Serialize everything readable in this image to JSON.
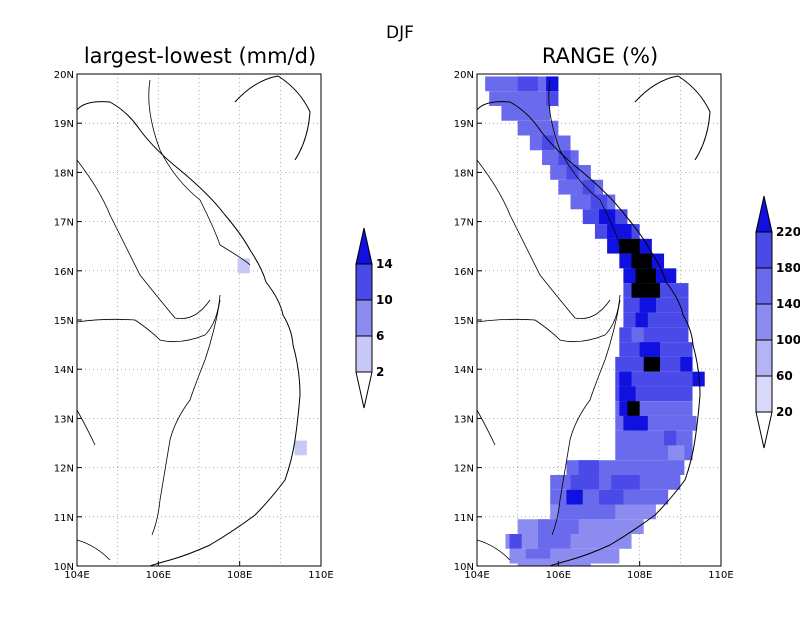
{
  "figure": {
    "season_title": "DJF"
  },
  "panels": [
    {
      "title": "largest-lowest (mm/d)",
      "x_ticks": [
        "104E",
        "106E",
        "108E",
        "110E"
      ],
      "y_ticks": [
        "10N",
        "11N",
        "12N",
        "13N",
        "14N",
        "15N",
        "16N",
        "17N",
        "18N",
        "19N",
        "20N"
      ],
      "colorbar_labels": [
        "2",
        "6",
        "10",
        "14"
      ],
      "colorbar_colors": [
        "#ffffff",
        "#c8c8f8",
        "#8c8cf0",
        "#4a4ae8",
        "#1010e0"
      ]
    },
    {
      "title": "RANGE (%)",
      "x_ticks": [
        "104E",
        "106E",
        "108E",
        "110E"
      ],
      "y_ticks": [
        "10N",
        "11N",
        "12N",
        "13N",
        "14N",
        "15N",
        "16N",
        "17N",
        "18N",
        "19N",
        "20N"
      ],
      "colorbar_labels": [
        "20",
        "60",
        "100",
        "140",
        "180",
        "220"
      ],
      "colorbar_colors": [
        "#ffffff",
        "#d8d8fa",
        "#b4b4f4",
        "#8c8cf0",
        "#6a6aec",
        "#4a4ae8",
        "#1010e0"
      ]
    }
  ],
  "chart_data": [
    {
      "type": "heatmap",
      "title": "largest-lowest (mm/d)",
      "xlim": [
        104,
        110
      ],
      "ylim": [
        10,
        20
      ],
      "levels": [
        2,
        6,
        10,
        14
      ],
      "grid": true,
      "cells": [
        {
          "lon": 108.1,
          "lat": 16.1,
          "level": 1
        },
        {
          "lon": 109.5,
          "lat": 12.4,
          "level": 1
        }
      ]
    },
    {
      "type": "heatmap",
      "title": "RANGE (%)",
      "xlim": [
        104,
        110
      ],
      "ylim": [
        10,
        20
      ],
      "levels": [
        20,
        60,
        100,
        140,
        180,
        220
      ],
      "grid": true,
      "rows": [
        {
          "lat": 19.8,
          "segments": [
            [
              104.2,
              106.0,
              4
            ],
            [
              105.0,
              105.5,
              5
            ],
            [
              105.7,
              106.0,
              6
            ]
          ]
        },
        {
          "lat": 19.5,
          "segments": [
            [
              104.3,
              106.0,
              4
            ],
            [
              105.7,
              106.0,
              5
            ]
          ]
        },
        {
          "lat": 19.2,
          "segments": [
            [
              104.6,
              105.8,
              4
            ]
          ]
        },
        {
          "lat": 18.9,
          "segments": [
            [
              105.0,
              106.0,
              4
            ]
          ]
        },
        {
          "lat": 18.6,
          "segments": [
            [
              105.3,
              106.3,
              4
            ],
            [
              105.6,
              105.9,
              5
            ]
          ]
        },
        {
          "lat": 18.3,
          "segments": [
            [
              105.6,
              106.5,
              4
            ],
            [
              106.0,
              106.3,
              5
            ]
          ]
        },
        {
          "lat": 18.0,
          "segments": [
            [
              105.8,
              106.8,
              4
            ],
            [
              106.2,
              106.5,
              5
            ]
          ]
        },
        {
          "lat": 17.7,
          "segments": [
            [
              106.0,
              107.1,
              4
            ],
            [
              106.6,
              106.9,
              5
            ]
          ]
        },
        {
          "lat": 17.4,
          "segments": [
            [
              106.3,
              107.4,
              4
            ],
            [
              106.8,
              107.2,
              5
            ]
          ]
        },
        {
          "lat": 17.1,
          "segments": [
            [
              106.6,
              107.7,
              5
            ],
            [
              107.0,
              107.4,
              6
            ]
          ]
        },
        {
          "lat": 16.8,
          "segments": [
            [
              106.9,
              108.0,
              5
            ],
            [
              107.2,
              107.8,
              6
            ]
          ]
        },
        {
          "lat": 16.5,
          "segments": [
            [
              107.2,
              108.3,
              6
            ],
            [
              107.5,
              108.0,
              7
            ]
          ]
        },
        {
          "lat": 16.2,
          "segments": [
            [
              107.5,
              108.6,
              6
            ],
            [
              107.8,
              108.3,
              7
            ]
          ]
        },
        {
          "lat": 15.9,
          "segments": [
            [
              107.6,
              108.9,
              6
            ],
            [
              107.9,
              108.4,
              7
            ]
          ]
        },
        {
          "lat": 15.6,
          "segments": [
            [
              107.6,
              109.2,
              5
            ],
            [
              107.8,
              108.5,
              7
            ]
          ]
        },
        {
          "lat": 15.3,
          "segments": [
            [
              107.6,
              109.2,
              5
            ],
            [
              108.0,
              108.4,
              6
            ]
          ]
        },
        {
          "lat": 15.0,
          "segments": [
            [
              107.6,
              109.2,
              5
            ],
            [
              107.9,
              108.2,
              6
            ]
          ]
        },
        {
          "lat": 14.7,
          "segments": [
            [
              107.5,
              109.2,
              5
            ],
            [
              107.8,
              108.1,
              4
            ]
          ]
        },
        {
          "lat": 14.4,
          "segments": [
            [
              107.5,
              109.3,
              5
            ],
            [
              108.0,
              108.5,
              6
            ]
          ]
        },
        {
          "lat": 14.1,
          "segments": [
            [
              107.4,
              109.3,
              5
            ],
            [
              108.1,
              108.5,
              7
            ],
            [
              109.0,
              109.3,
              6
            ]
          ]
        },
        {
          "lat": 13.8,
          "segments": [
            [
              107.4,
              109.3,
              5
            ],
            [
              107.5,
              107.8,
              6
            ],
            [
              109.3,
              109.6,
              6
            ]
          ]
        },
        {
          "lat": 13.5,
          "segments": [
            [
              107.4,
              109.3,
              5
            ],
            [
              107.5,
              107.9,
              6
            ]
          ]
        },
        {
          "lat": 13.2,
          "segments": [
            [
              107.4,
              109.3,
              4
            ],
            [
              107.5,
              107.9,
              6
            ],
            [
              107.7,
              108.0,
              7
            ]
          ]
        },
        {
          "lat": 12.9,
          "segments": [
            [
              107.4,
              109.4,
              4
            ],
            [
              107.6,
              108.2,
              6
            ]
          ]
        },
        {
          "lat": 12.6,
          "segments": [
            [
              107.4,
              109.3,
              4
            ],
            [
              108.6,
              108.9,
              5
            ]
          ]
        },
        {
          "lat": 12.3,
          "segments": [
            [
              107.4,
              109.3,
              4
            ],
            [
              108.7,
              109.1,
              3
            ]
          ]
        },
        {
          "lat": 12.0,
          "segments": [
            [
              106.2,
              109.1,
              4
            ],
            [
              106.5,
              107.0,
              5
            ]
          ]
        },
        {
          "lat": 11.7,
          "segments": [
            [
              105.8,
              109.0,
              4
            ],
            [
              106.3,
              107.0,
              5
            ],
            [
              107.3,
              108.0,
              5
            ]
          ]
        },
        {
          "lat": 11.4,
          "segments": [
            [
              105.8,
              108.7,
              4
            ],
            [
              106.2,
              106.6,
              6
            ],
            [
              107.0,
              107.6,
              5
            ]
          ]
        },
        {
          "lat": 11.1,
          "segments": [
            [
              105.8,
              108.4,
              3
            ],
            [
              106.0,
              107.4,
              4
            ]
          ]
        },
        {
          "lat": 10.8,
          "segments": [
            [
              105.0,
              108.1,
              3
            ],
            [
              105.5,
              106.5,
              4
            ]
          ]
        },
        {
          "lat": 10.5,
          "segments": [
            [
              104.7,
              107.8,
              3
            ],
            [
              104.8,
              105.1,
              5
            ],
            [
              105.5,
              106.3,
              4
            ]
          ]
        },
        {
          "lat": 10.2,
          "segments": [
            [
              104.8,
              107.5,
              3
            ],
            [
              105.2,
              105.8,
              4
            ]
          ]
        },
        {
          "lat": 10.0,
          "segments": [
            [
              105.0,
              106.8,
              3
            ]
          ]
        }
      ]
    }
  ]
}
